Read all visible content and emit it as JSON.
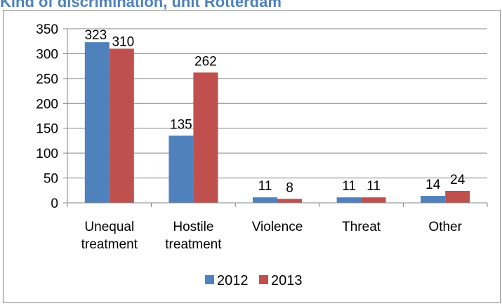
{
  "chart_data": {
    "type": "bar",
    "title": "Kind of discrimination, unit Rotterdam",
    "categories": [
      [
        "Unequal",
        "treatment"
      ],
      [
        "Hostile",
        "treatment"
      ],
      [
        "Violence"
      ],
      [
        "Threat"
      ],
      [
        "Other"
      ]
    ],
    "series": [
      {
        "name": "2012",
        "color": "#4f81bd",
        "values": [
          323,
          135,
          11,
          11,
          14
        ]
      },
      {
        "name": "2013",
        "color": "#c0504d",
        "values": [
          310,
          262,
          8,
          11,
          24
        ]
      }
    ],
    "yticks": [
      "0",
      "50",
      "100",
      "150",
      "200",
      "250",
      "300",
      "350"
    ],
    "ylim": [
      0,
      350
    ],
    "grid": true,
    "legend_position": "bottom-center",
    "colors": {
      "gridline": "#868686",
      "axis": "#868686"
    }
  }
}
